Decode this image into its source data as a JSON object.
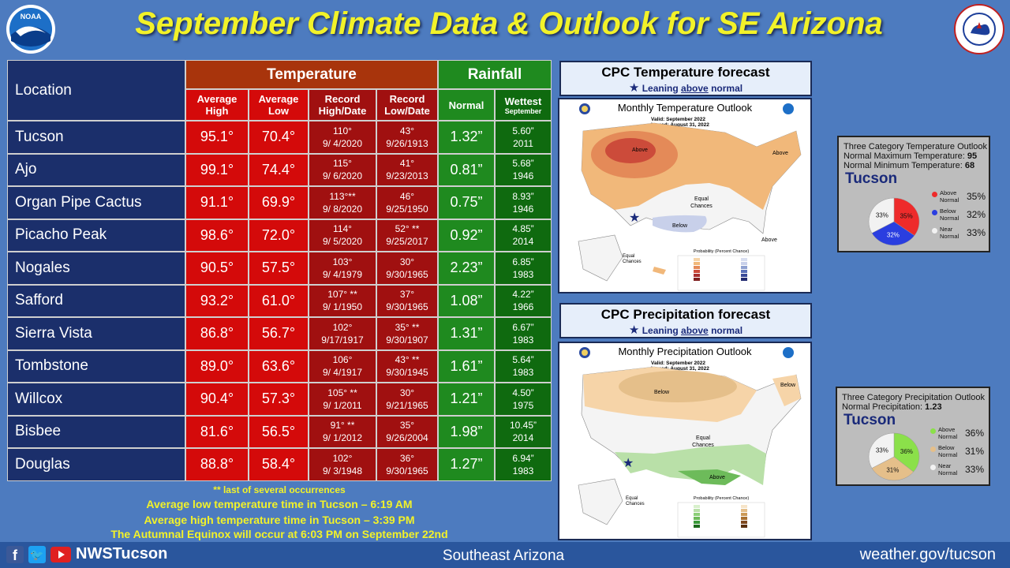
{
  "title": "September Climate Data & Outlook for SE Arizona",
  "logos": {
    "left": "NOAA",
    "right": "NATIONAL WEATHER SERVICE"
  },
  "table": {
    "location_header": "Location",
    "temperature_header": "Temperature",
    "rainfall_header": "Rainfall",
    "col_avg_high": "Average High",
    "col_avg_low": "Average Low",
    "col_record_high": "Record High/Date",
    "col_record_low": "Record Low/Date",
    "col_normal": "Normal",
    "col_wettest": "Wettest",
    "col_wettest_sub": "September",
    "rows": [
      {
        "loc": "Tucson",
        "high": "95.1°",
        "low": "70.4°",
        "rh": "110°",
        "rhd": "9/ 4/2020",
        "rl": "43°",
        "rld": "9/26/1913",
        "normal": "1.32”",
        "wet": "5.60”",
        "wety": "2011"
      },
      {
        "loc": "Ajo",
        "high": "99.1°",
        "low": "74.4°",
        "rh": "115°",
        "rhd": "9/ 6/2020",
        "rl": "41°",
        "rld": "9/23/2013",
        "normal": "0.81”",
        "wet": "5.68”",
        "wety": "1946"
      },
      {
        "loc": "Organ Pipe Cactus",
        "high": "91.1°",
        "low": "69.9°",
        "rh": "113°**",
        "rhd": "9/ 8/2020",
        "rl": "46°",
        "rld": "9/25/1950",
        "normal": "0.75”",
        "wet": "8.93”",
        "wety": "1946"
      },
      {
        "loc": "Picacho Peak",
        "high": "98.6°",
        "low": "72.0°",
        "rh": "114°",
        "rhd": "9/ 5/2020",
        "rl": "52° **",
        "rld": "9/25/2017",
        "normal": "0.92”",
        "wet": "4.85”",
        "wety": "2014"
      },
      {
        "loc": "Nogales",
        "high": "90.5°",
        "low": "57.5°",
        "rh": "103°",
        "rhd": "9/ 4/1979",
        "rl": "30°",
        "rld": "9/30/1965",
        "normal": "2.23”",
        "wet": "6.85”",
        "wety": "1983"
      },
      {
        "loc": "Safford",
        "high": "93.2°",
        "low": "61.0°",
        "rh": "107° **",
        "rhd": "9/ 1/1950",
        "rl": "37°",
        "rld": "9/30/1965",
        "normal": "1.08”",
        "wet": "4.22”",
        "wety": "1966"
      },
      {
        "loc": "Sierra Vista",
        "high": "86.8°",
        "low": "56.7°",
        "rh": "102°",
        "rhd": "9/17/1917",
        "rl": "35° **",
        "rld": "9/30/1907",
        "normal": "1.31”",
        "wet": "6.67”",
        "wety": "1983"
      },
      {
        "loc": "Tombstone",
        "high": "89.0°",
        "low": "63.6°",
        "rh": "106°",
        "rhd": "9/ 4/1917",
        "rl": "43° **",
        "rld": "9/30/1945",
        "normal": "1.61”",
        "wet": "5.64”",
        "wety": "1983"
      },
      {
        "loc": "Willcox",
        "high": "90.4°",
        "low": "57.3°",
        "rh": "105° **",
        "rhd": "9/ 1/2011",
        "rl": "30°",
        "rld": "9/21/1965",
        "normal": "1.21”",
        "wet": "4.50”",
        "wety": "1975"
      },
      {
        "loc": "Bisbee",
        "high": "81.6°",
        "low": "56.5°",
        "rh": "91° **",
        "rhd": "9/ 1/2012",
        "rl": "35°",
        "rld": "9/26/2004",
        "normal": "1.98”",
        "wet": "10.45”",
        "wety": "2014"
      },
      {
        "loc": "Douglas",
        "high": "88.8°",
        "low": "58.4°",
        "rh": "102°",
        "rhd": "9/ 3/1948",
        "rl": "36°",
        "rld": "9/30/1965",
        "normal": "1.27”",
        "wet": "6.94”",
        "wety": "1983"
      }
    ]
  },
  "notes": {
    "footnote": "** last of several occurrences",
    "line1": "Average low temperature time in Tucson – 6:19 AM",
    "line2": "Average high temperature time in Tucson – 3:39 PM",
    "line3": "The Autumnal Equinox will occur at 6:03 PM on September 22nd"
  },
  "temp_panel": {
    "title": "CPC Temperature forecast",
    "lean_pre": "Leaning ",
    "lean_word": "above",
    "lean_post": " normal",
    "map_title": "Monthly Temperature Outlook",
    "valid": "Valid:  September 2022",
    "issued": "Issued:  August 31, 2022",
    "labels": {
      "above1": "Above",
      "above2": "Above",
      "above3": "Above",
      "below": "Below",
      "equal1": "Equal",
      "equal2": "Chances",
      "equal3": "Equal",
      "equal4": "Chances"
    },
    "legend_title": "Probability (Percent Chance)"
  },
  "precip_panel": {
    "title": "CPC Precipitation forecast",
    "lean_pre": "Leaning ",
    "lean_word": "above",
    "lean_post": " normal",
    "map_title": "Monthly Precipitation Outlook",
    "valid": "Valid:  September 2022",
    "issued": "Issued:  August 31, 2022",
    "labels": {
      "below1": "Below",
      "below2": "Below",
      "above": "Above",
      "equal1": "Equal",
      "equal2": "Chances",
      "equal3": "Equal",
      "equal4": "Chances"
    },
    "legend_title": "Probability (Percent Chance)"
  },
  "temp_side": {
    "title": "Three Category Temperature Outlook",
    "line1_label": "Normal Maximum Temperature: ",
    "line1_val": "95",
    "line2_label": "Normal Minimum Temperature: ",
    "line2_val": "68",
    "city": "Tucson",
    "pie": [
      {
        "label": "Above Normal",
        "pct": 35,
        "color": "#ee2b2b",
        "text": "35%"
      },
      {
        "label": "Below Normal",
        "pct": 32,
        "color": "#2a3ee0",
        "text": "32%"
      },
      {
        "label": "Near Normal",
        "pct": 33,
        "color": "#f2f2f2",
        "text": "33%"
      }
    ]
  },
  "precip_side": {
    "title": "Three Category Precipitation Outlook",
    "line1_label": "Normal Precipitation: ",
    "line1_val": "1.23",
    "city": "Tucson",
    "pie": [
      {
        "label": "Above Normal",
        "pct": 36,
        "color": "#8be04a",
        "text": "36%"
      },
      {
        "label": "Below Normal",
        "pct": 31,
        "color": "#e5bf8a",
        "text": "31%"
      },
      {
        "label": "Near Normal",
        "pct": 33,
        "color": "#f2f2f2",
        "text": "33%"
      }
    ]
  },
  "footer": {
    "handle": "NWSTucson",
    "region": "Southeast Arizona",
    "url": "weather.gov/tucson"
  }
}
